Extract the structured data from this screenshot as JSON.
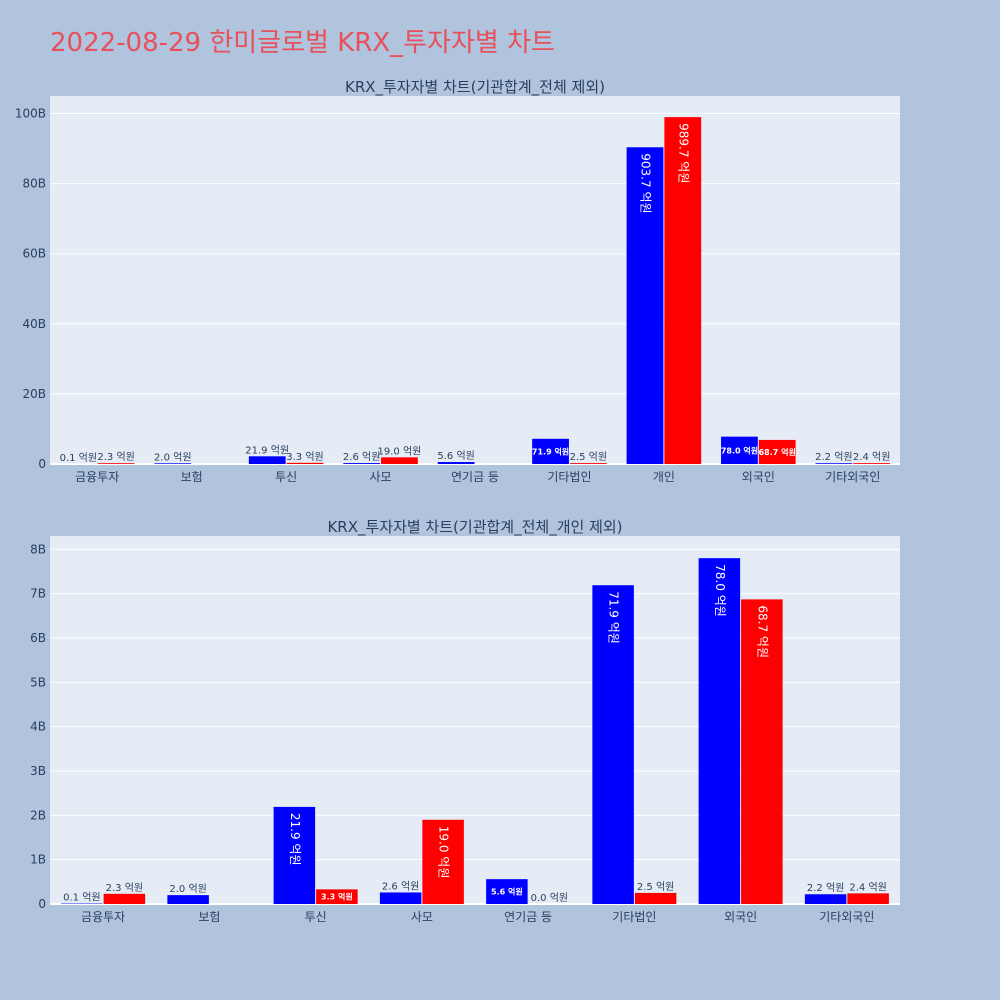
{
  "page": {
    "title": "2022-08-29 한미글로벌 KRX_투자자별 차트"
  },
  "colors": {
    "background": "#b0c4de",
    "plot_background": "#e5ecf6",
    "title": "#e8505b",
    "series_blue": "#0000ff",
    "series_red": "#ff0000"
  },
  "chart_data": [
    {
      "type": "bar",
      "title": "KRX_투자자별 차트(기관합계_전체 제외)",
      "categories": [
        "금융투자",
        "보험",
        "투신",
        "사모",
        "연기금 등",
        "기타법인",
        "개인",
        "외국인",
        "기타외국인"
      ],
      "ylim": [
        0,
        105000000000
      ],
      "yticks": [
        0,
        20000000000,
        40000000000,
        60000000000,
        80000000000,
        100000000000
      ],
      "ytick_labels": [
        "0",
        "20B",
        "40B",
        "60B",
        "80B",
        "100B"
      ],
      "grid": true,
      "series": [
        {
          "color": "#0000ff",
          "values": [
            10000000,
            200000000,
            2190000000,
            260000000,
            560000000,
            7190000000,
            90370000000,
            7800000000,
            220000000
          ],
          "labels": [
            "0.1 억원",
            "2.0 억원",
            "21.9 억원",
            "2.6 억원",
            "5.6 억원",
            "71.9 억원",
            "903.7 억원",
            "78.0 억원",
            "2.2 억원"
          ]
        },
        {
          "color": "#ff0000",
          "values": [
            230000000,
            0,
            330000000,
            1900000000,
            0,
            250000000,
            98970000000,
            6870000000,
            240000000
          ],
          "labels": [
            "2.3 억원",
            "",
            "3.3 억원",
            "19.0 억원",
            "",
            "2.5 억원",
            "989.7 억원",
            "68.7 억원",
            "2.4 억원"
          ]
        }
      ]
    },
    {
      "type": "bar",
      "title": "KRX_투자자별 차트(기관합계_전체_개인 제외)",
      "categories": [
        "금융투자",
        "보험",
        "투신",
        "사모",
        "연기금 등",
        "기타법인",
        "외국인",
        "기타외국인"
      ],
      "ylim": [
        0,
        8300000000
      ],
      "yticks": [
        0,
        1000000000,
        2000000000,
        3000000000,
        4000000000,
        5000000000,
        6000000000,
        7000000000,
        8000000000
      ],
      "ytick_labels": [
        "0",
        "1B",
        "2B",
        "3B",
        "4B",
        "5B",
        "6B",
        "7B",
        "8B"
      ],
      "grid": true,
      "series": [
        {
          "color": "#0000ff",
          "values": [
            10000000,
            200000000,
            2190000000,
            260000000,
            560000000,
            7190000000,
            7800000000,
            220000000
          ],
          "labels": [
            "0.1 억원",
            "2.0 억원",
            "21.9 억원",
            "2.6 억원",
            "5.6 억원",
            "71.9 억원",
            "78.0 억원",
            "2.2 억원"
          ]
        },
        {
          "color": "#ff0000",
          "values": [
            230000000,
            0,
            330000000,
            1900000000,
            0,
            250000000,
            6870000000,
            240000000
          ],
          "labels": [
            "2.3 억원",
            "",
            "3.3 억원",
            "19.0 억원",
            "0.0 억원",
            "2.5 억원",
            "68.7 억원",
            "2.4 억원"
          ]
        }
      ]
    }
  ]
}
